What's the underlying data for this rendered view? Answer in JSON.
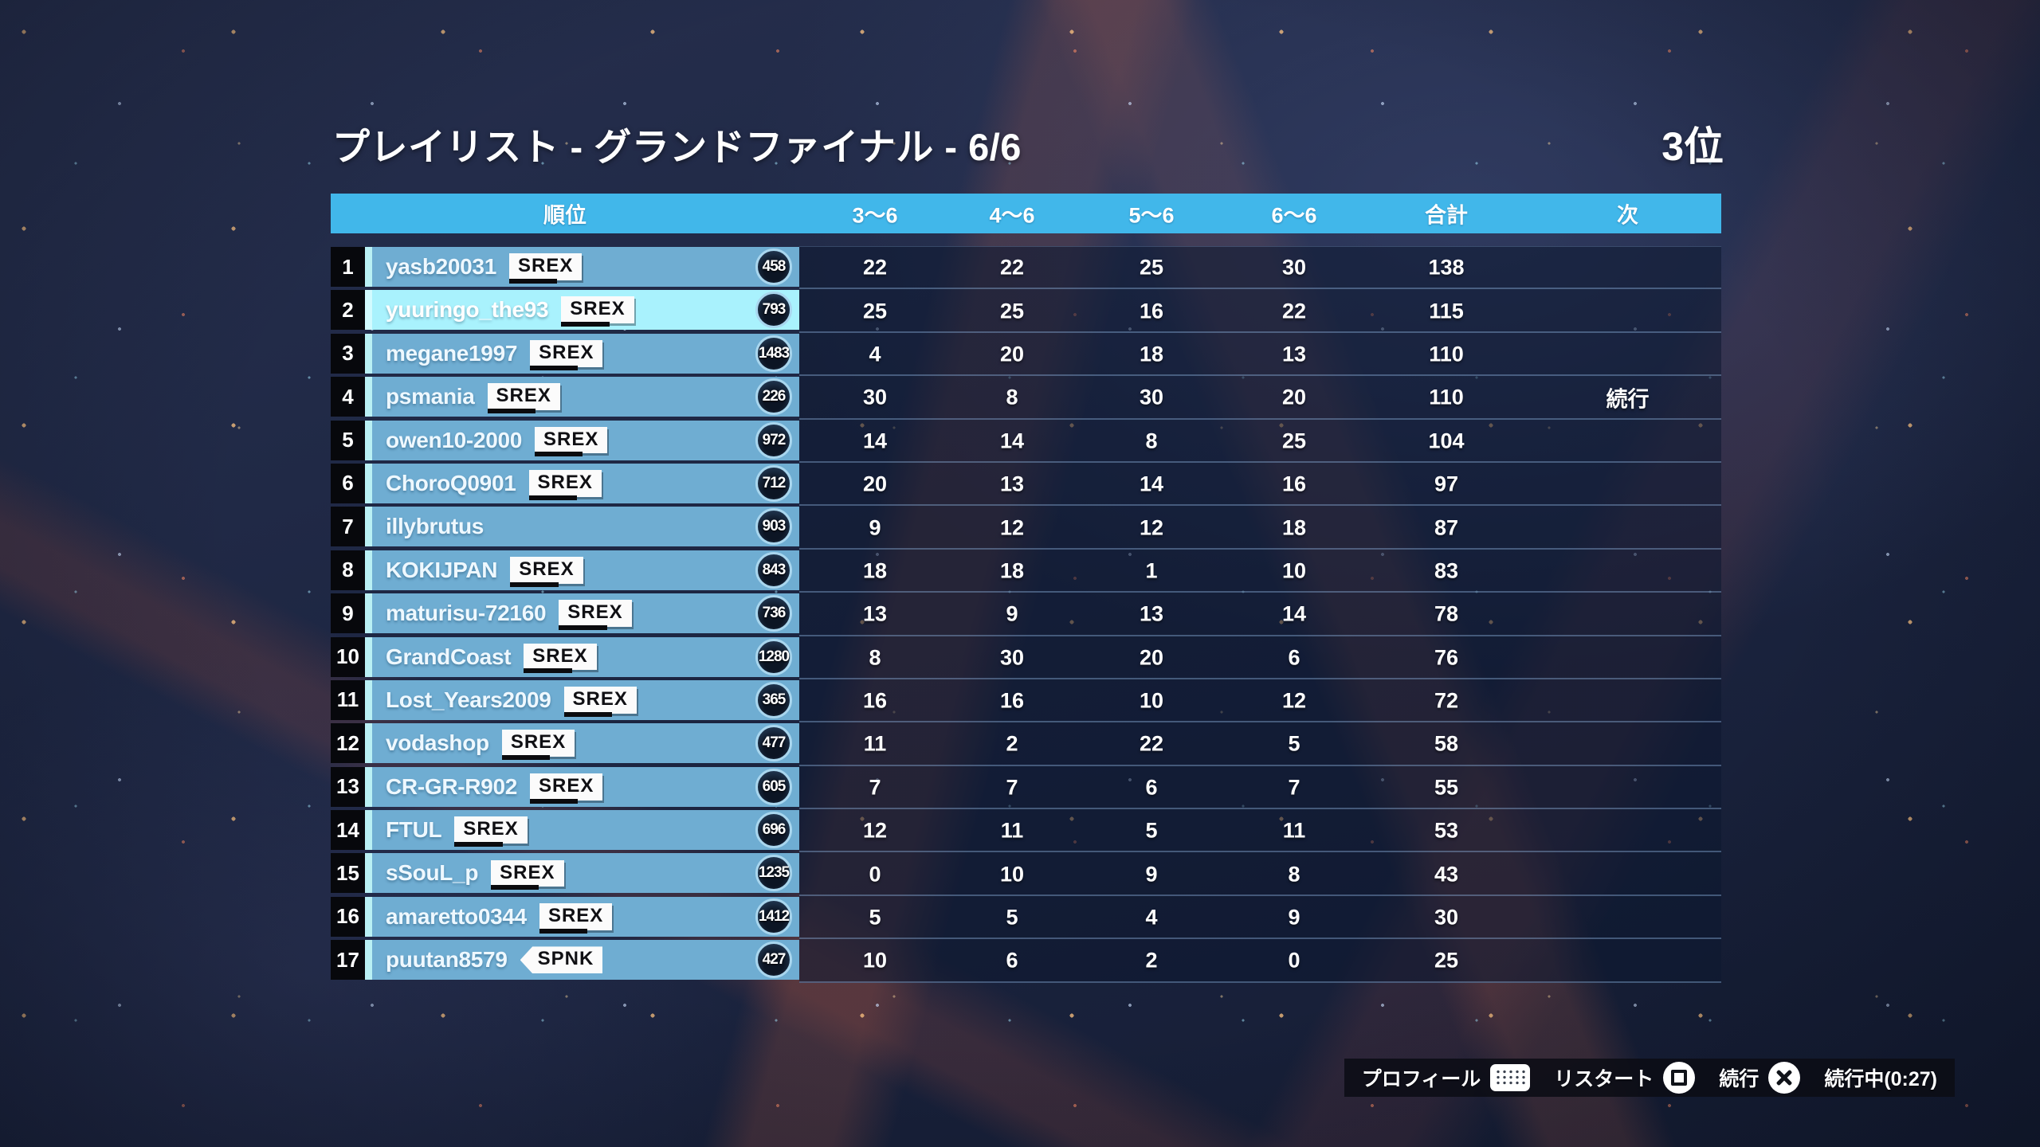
{
  "title": "プレイリスト - グランドファイナル - 6/6",
  "position": "3位",
  "table": {
    "headers": [
      "順位",
      "3〜6",
      "4〜6",
      "5〜6",
      "6〜6",
      "合計",
      "次"
    ],
    "rows": [
      {
        "rank": 1,
        "name": "yasb20031",
        "tag": "SREX",
        "tag_style": "box",
        "badge": "458",
        "scores": [
          22,
          22,
          25,
          30
        ],
        "total": 138,
        "next": "",
        "selected": false
      },
      {
        "rank": 2,
        "name": "yuuringo_the93",
        "tag": "SREX",
        "tag_style": "box",
        "badge": "793",
        "scores": [
          25,
          25,
          16,
          22
        ],
        "total": 115,
        "next": "",
        "selected": true
      },
      {
        "rank": 3,
        "name": "megane1997",
        "tag": "SREX",
        "tag_style": "box",
        "badge": "1483",
        "scores": [
          4,
          20,
          18,
          13
        ],
        "total": 110,
        "next": "",
        "selected": false
      },
      {
        "rank": 4,
        "name": "psmania",
        "tag": "SREX",
        "tag_style": "box",
        "badge": "226",
        "scores": [
          30,
          8,
          30,
          20
        ],
        "total": 110,
        "next": "続行",
        "selected": false
      },
      {
        "rank": 5,
        "name": "owen10-2000",
        "tag": "SREX",
        "tag_style": "box",
        "badge": "972",
        "scores": [
          14,
          14,
          8,
          25
        ],
        "total": 104,
        "next": "",
        "selected": false
      },
      {
        "rank": 6,
        "name": "ChoroQ0901",
        "tag": "SREX",
        "tag_style": "box",
        "badge": "712",
        "scores": [
          20,
          13,
          14,
          16
        ],
        "total": 97,
        "next": "",
        "selected": false
      },
      {
        "rank": 7,
        "name": "illybrutus",
        "tag": "",
        "tag_style": "",
        "badge": "903",
        "scores": [
          9,
          12,
          12,
          18
        ],
        "total": 87,
        "next": "",
        "selected": false
      },
      {
        "rank": 8,
        "name": "KOKIJPAN",
        "tag": "SREX",
        "tag_style": "box",
        "badge": "843",
        "scores": [
          18,
          18,
          1,
          10
        ],
        "total": 83,
        "next": "",
        "selected": false
      },
      {
        "rank": 9,
        "name": "maturisu-72160",
        "tag": "SREX",
        "tag_style": "box",
        "badge": "736",
        "scores": [
          13,
          9,
          13,
          14
        ],
        "total": 78,
        "next": "",
        "selected": false
      },
      {
        "rank": 10,
        "name": "GrandCoast",
        "tag": "SREX",
        "tag_style": "box",
        "badge": "1280",
        "scores": [
          8,
          30,
          20,
          6
        ],
        "total": 76,
        "next": "",
        "selected": false
      },
      {
        "rank": 11,
        "name": "Lost_Years2009",
        "tag": "SREX",
        "tag_style": "box",
        "badge": "365",
        "scores": [
          16,
          16,
          10,
          12
        ],
        "total": 72,
        "next": "",
        "selected": false
      },
      {
        "rank": 12,
        "name": "vodashop",
        "tag": "SREX",
        "tag_style": "box",
        "badge": "477",
        "scores": [
          11,
          2,
          22,
          5
        ],
        "total": 58,
        "next": "",
        "selected": false
      },
      {
        "rank": 13,
        "name": "CR-GR-R902",
        "tag": "SREX",
        "tag_style": "box",
        "badge": "605",
        "scores": [
          7,
          7,
          6,
          7
        ],
        "total": 55,
        "next": "",
        "selected": false
      },
      {
        "rank": 14,
        "name": "FTUL",
        "tag": "SREX",
        "tag_style": "box",
        "badge": "696",
        "scores": [
          12,
          11,
          5,
          11
        ],
        "total": 53,
        "next": "",
        "selected": false
      },
      {
        "rank": 15,
        "name": "sSouL_p",
        "tag": "SREX",
        "tag_style": "box",
        "badge": "1235",
        "scores": [
          0,
          10,
          9,
          8
        ],
        "total": 43,
        "next": "",
        "selected": false
      },
      {
        "rank": 16,
        "name": "amaretto0344",
        "tag": "SREX",
        "tag_style": "box",
        "badge": "1412",
        "scores": [
          5,
          5,
          4,
          9
        ],
        "total": 30,
        "next": "",
        "selected": false
      },
      {
        "rank": 17,
        "name": "puutan8579",
        "tag": "SPNK",
        "tag_style": "pennant",
        "badge": "427",
        "scores": [
          10,
          6,
          2,
          0
        ],
        "total": 25,
        "next": "",
        "selected": false
      }
    ]
  },
  "action_bar": {
    "items": [
      {
        "label": "プロフィール",
        "button": "touchpad"
      },
      {
        "label": "リスタート",
        "button": "square"
      },
      {
        "label": "続行",
        "button": "cross"
      },
      {
        "label": "続行中(0:27)",
        "button": ""
      }
    ]
  },
  "colors": {
    "header_bar": "#41b7ea",
    "row_name_bg": "#6fadd2",
    "selected_row_bg": "#a9f2fd",
    "rank_cell_bg": "#07080c",
    "accent_stripe": "#b9f0f4",
    "score_panel": "#0d1830",
    "text": "#ffffff"
  }
}
